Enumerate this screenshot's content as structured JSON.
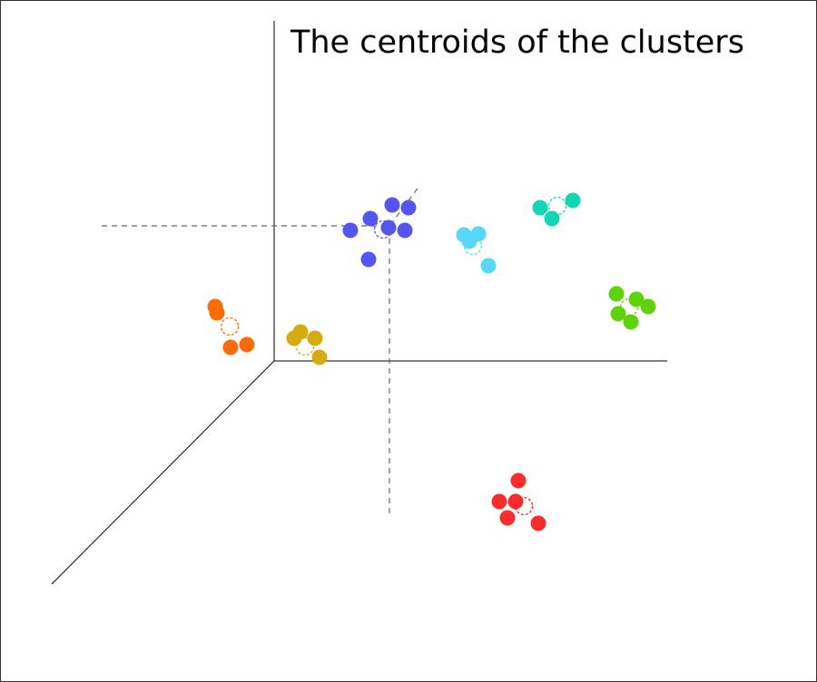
{
  "title": "The centroids of the clusters",
  "clusters": [
    {
      "name": "blue",
      "color": "#5555f1"
    },
    {
      "name": "cyan",
      "color": "#56d8f7"
    },
    {
      "name": "teal",
      "color": "#11d5b5"
    },
    {
      "name": "green",
      "color": "#5ed30a"
    },
    {
      "name": "orange",
      "color": "#fb6c08"
    },
    {
      "name": "gold",
      "color": "#d6ab10"
    },
    {
      "name": "red",
      "color": "#fb2c2c"
    }
  ],
  "colors": {
    "axis": "#000000",
    "guide": "#666666",
    "frame": "#333333"
  }
}
